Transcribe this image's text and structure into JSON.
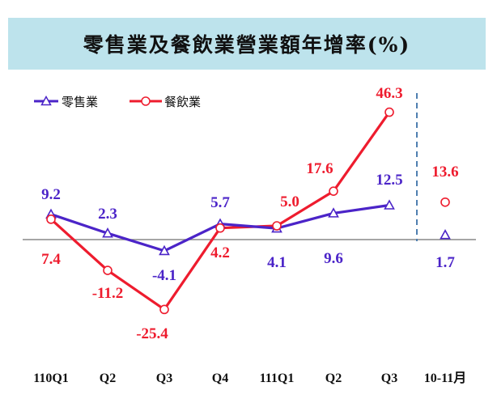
{
  "title": "零售業及餐飲業營業額年增率(%)",
  "colors": {
    "retail": "#4b24c8",
    "food": "#ee1c2e",
    "divider": "#4f7fb0",
    "axis": "#888888"
  },
  "chart_data": {
    "type": "line",
    "title": "零售業及餐飲業營業額年增率(%)",
    "categories": [
      "110Q1",
      "Q2",
      "Q3",
      "Q4",
      "111Q1",
      "Q2",
      "Q3",
      "10-11月"
    ],
    "ylim": [
      -30,
      50
    ],
    "grid": false,
    "legend_position": "top-left",
    "series": [
      {
        "name": "零售業",
        "marker": "triangle",
        "values": [
          9.2,
          2.3,
          -4.1,
          5.7,
          4.1,
          9.6,
          12.5,
          1.7
        ]
      },
      {
        "name": "餐飲業",
        "marker": "circle",
        "values": [
          7.4,
          -11.2,
          -25.4,
          4.2,
          5.0,
          17.6,
          46.3,
          13.6
        ]
      }
    ],
    "labels": {
      "retail": [
        "9.2",
        "2.3",
        "-4.1",
        "5.7",
        "4.1",
        "9.6",
        "12.5",
        "1.7"
      ],
      "food": [
        "7.4",
        "-11.2",
        "-25.4",
        "4.2",
        "5.0",
        "17.6",
        "46.3",
        "13.6"
      ]
    }
  }
}
